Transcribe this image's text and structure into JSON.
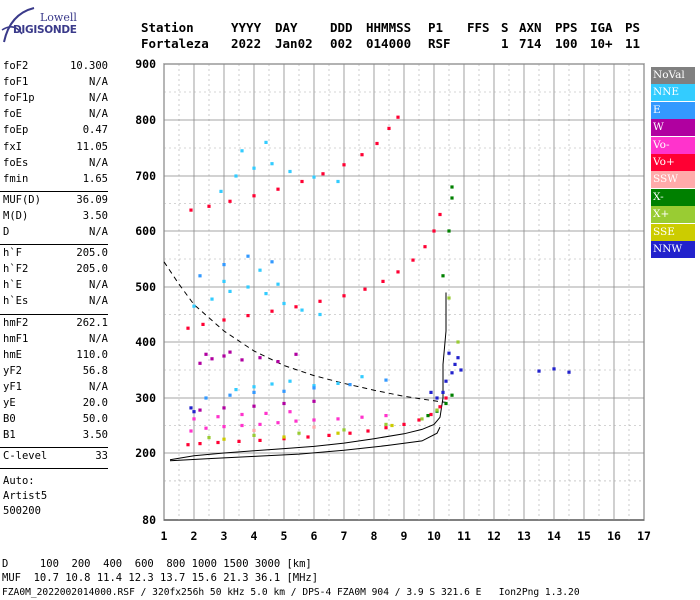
{
  "logo": {
    "line1": "Lowell",
    "line2": "DIGISONDE"
  },
  "header": {
    "labels": [
      "Station",
      "YYYY",
      "DAY",
      "DDD",
      "HHMMSS",
      "P1",
      "FFS",
      "S",
      "AXN",
      "PPS",
      "IGA",
      "PS"
    ],
    "values": [
      "Fortaleza",
      "2022",
      "Jan02",
      "002",
      "014000",
      "RSF",
      "",
      "1",
      "714",
      "100",
      "10+",
      "11"
    ]
  },
  "params": {
    "group1": [
      {
        "k": "foF2",
        "v": "10.300"
      },
      {
        "k": "foF1",
        "v": "N/A"
      },
      {
        "k": "foF1p",
        "v": "N/A"
      },
      {
        "k": "foE",
        "v": "N/A"
      },
      {
        "k": "foEp",
        "v": "0.47"
      },
      {
        "k": "fxI",
        "v": "11.05"
      },
      {
        "k": "foEs",
        "v": "N/A"
      },
      {
        "k": "fmin",
        "v": "1.65"
      }
    ],
    "group2": [
      {
        "k": "MUF(D)",
        "v": "36.09"
      },
      {
        "k": "M(D)",
        "v": "3.50"
      },
      {
        "k": "D",
        "v": "N/A"
      }
    ],
    "group3": [
      {
        "k": "h`F",
        "v": "205.0"
      },
      {
        "k": "h`F2",
        "v": "205.0"
      },
      {
        "k": "h`E",
        "v": "N/A"
      },
      {
        "k": "h`Es",
        "v": "N/A"
      }
    ],
    "group4": [
      {
        "k": "hmF2",
        "v": "262.1"
      },
      {
        "k": "hmF1",
        "v": "N/A"
      },
      {
        "k": "hmE",
        "v": "110.0"
      },
      {
        "k": "yF2",
        "v": "56.8"
      },
      {
        "k": "yF1",
        "v": "N/A"
      },
      {
        "k": "yE",
        "v": "20.0"
      },
      {
        "k": "B0",
        "v": "50.0"
      },
      {
        "k": "B1",
        "v": "3.50"
      }
    ],
    "group5": [
      {
        "k": "C-level",
        "v": "33"
      }
    ],
    "notes": [
      "Auto:",
      "Artist5",
      "500200"
    ]
  },
  "legend": [
    {
      "label": "NoVal",
      "color": "#808080"
    },
    {
      "label": "NNE",
      "color": "#33ccff"
    },
    {
      "label": "E",
      "color": "#3399ff"
    },
    {
      "label": "W",
      "color": "#b000a0"
    },
    {
      "label": "Vo-",
      "color": "#ff33cc"
    },
    {
      "label": "Vo+",
      "color": "#ff0033"
    },
    {
      "label": "SSW",
      "color": "#ffaaaa"
    },
    {
      "label": "X-",
      "color": "#008000"
    },
    {
      "label": "X+",
      "color": "#99cc33"
    },
    {
      "label": "SSE",
      "color": "#cccc00"
    },
    {
      "label": "NNW",
      "color": "#2222cc"
    }
  ],
  "footer": {
    "line1": "D     100  200  400  600  800 1000 1500 3000 [km]",
    "line2": "MUF  10.7 10.8 11.4 12.3 13.7 15.6 21.3 36.1 [MHz]",
    "line3": "FZA0M_2022002014000.RSF / 320fx256h 50 kHz 5.0 km / DPS-4 FZA0M 904 / 3.9 S 321.6 E   Ion2Png 1.3.20"
  },
  "chart_data": {
    "type": "scatter",
    "xlim": [
      1,
      17
    ],
    "ylim": [
      80,
      900
    ],
    "x_ticks": [
      1,
      2,
      3,
      4,
      5,
      6,
      7,
      8,
      9,
      10,
      11,
      12,
      13,
      14,
      15,
      16,
      17
    ],
    "y_ticks": [
      80,
      200,
      300,
      400,
      500,
      600,
      700,
      800,
      900
    ],
    "grid": true,
    "legend_position": "right",
    "series": [
      {
        "name": "Vo+",
        "color": "#ff0033",
        "points": [
          [
            1.8,
            215
          ],
          [
            2.2,
            217
          ],
          [
            2.8,
            219
          ],
          [
            3.5,
            221
          ],
          [
            4.2,
            223
          ],
          [
            5.0,
            226
          ],
          [
            5.8,
            229
          ],
          [
            6.5,
            232
          ],
          [
            7.2,
            236
          ],
          [
            7.8,
            240
          ],
          [
            8.4,
            246
          ],
          [
            9.0,
            252
          ],
          [
            9.5,
            260
          ],
          [
            9.9,
            270
          ],
          [
            10.2,
            284
          ],
          [
            10.4,
            300
          ],
          [
            1.8,
            425
          ],
          [
            2.3,
            432
          ],
          [
            3.0,
            440
          ],
          [
            3.8,
            448
          ],
          [
            4.6,
            456
          ],
          [
            5.4,
            464
          ],
          [
            6.2,
            474
          ],
          [
            7.0,
            484
          ],
          [
            7.7,
            496
          ],
          [
            8.3,
            510
          ],
          [
            8.8,
            527
          ],
          [
            9.3,
            548
          ],
          [
            9.7,
            572
          ],
          [
            10.0,
            600
          ],
          [
            10.2,
            630
          ],
          [
            1.9,
            638
          ],
          [
            2.5,
            645
          ],
          [
            3.2,
            654
          ],
          [
            4.0,
            664
          ],
          [
            4.8,
            676
          ],
          [
            5.6,
            690
          ],
          [
            6.3,
            704
          ],
          [
            7.0,
            720
          ],
          [
            7.6,
            738
          ],
          [
            8.1,
            758
          ],
          [
            8.5,
            785
          ],
          [
            8.8,
            805
          ]
        ]
      },
      {
        "name": "Vo-",
        "color": "#ff33cc",
        "points": [
          [
            1.9,
            240
          ],
          [
            2.4,
            245
          ],
          [
            3.0,
            248
          ],
          [
            3.6,
            250
          ],
          [
            4.2,
            252
          ],
          [
            4.8,
            255
          ],
          [
            5.4,
            258
          ],
          [
            6.0,
            260
          ],
          [
            6.8,
            262
          ],
          [
            7.6,
            265
          ],
          [
            8.4,
            268
          ],
          [
            2.0,
            262
          ],
          [
            2.8,
            266
          ],
          [
            3.6,
            270
          ],
          [
            4.4,
            272
          ],
          [
            5.2,
            275
          ]
        ]
      },
      {
        "name": "W",
        "color": "#b000a0",
        "points": [
          [
            2.2,
            362
          ],
          [
            2.6,
            370
          ],
          [
            3.0,
            375
          ],
          [
            3.6,
            368
          ],
          [
            4.2,
            372
          ],
          [
            4.8,
            365
          ],
          [
            5.4,
            378
          ],
          [
            2.4,
            378
          ],
          [
            3.2,
            382
          ],
          [
            2.2,
            278
          ],
          [
            3.0,
            282
          ],
          [
            4.0,
            285
          ],
          [
            5.0,
            290
          ],
          [
            6.0,
            294
          ]
        ]
      },
      {
        "name": "NNE",
        "color": "#33ccff",
        "points": [
          [
            2.0,
            465
          ],
          [
            2.6,
            478
          ],
          [
            3.2,
            492
          ],
          [
            3.8,
            500
          ],
          [
            4.4,
            488
          ],
          [
            5.0,
            470
          ],
          [
            5.6,
            458
          ],
          [
            6.2,
            450
          ],
          [
            3.0,
            510
          ],
          [
            4.2,
            530
          ],
          [
            4.8,
            505
          ],
          [
            3.4,
            315
          ],
          [
            4.0,
            320
          ],
          [
            4.6,
            325
          ],
          [
            5.2,
            330
          ],
          [
            6.0,
            322
          ],
          [
            6.8,
            326
          ],
          [
            7.6,
            338
          ],
          [
            2.9,
            672
          ],
          [
            3.4,
            700
          ],
          [
            4.0,
            714
          ],
          [
            4.6,
            722
          ],
          [
            5.2,
            708
          ],
          [
            6.0,
            698
          ],
          [
            6.8,
            690
          ],
          [
            3.6,
            745
          ],
          [
            4.4,
            760
          ]
        ]
      },
      {
        "name": "E",
        "color": "#3399ff",
        "points": [
          [
            2.4,
            300
          ],
          [
            3.2,
            305
          ],
          [
            4.0,
            310
          ],
          [
            5.0,
            312
          ],
          [
            6.0,
            318
          ],
          [
            7.2,
            324
          ],
          [
            8.4,
            332
          ],
          [
            2.2,
            520
          ],
          [
            3.0,
            540
          ],
          [
            3.8,
            555
          ],
          [
            4.6,
            545
          ]
        ]
      },
      {
        "name": "NNW",
        "color": "#2222cc",
        "points": [
          [
            10.4,
            330
          ],
          [
            10.6,
            345
          ],
          [
            10.7,
            360
          ],
          [
            10.8,
            372
          ],
          [
            10.5,
            380
          ],
          [
            10.3,
            310
          ],
          [
            10.9,
            350
          ],
          [
            13.5,
            348
          ],
          [
            14.0,
            352
          ],
          [
            14.5,
            346
          ],
          [
            9.9,
            310
          ],
          [
            10.1,
            300
          ],
          [
            1.9,
            282
          ],
          [
            2.0,
            275
          ]
        ]
      },
      {
        "name": "X-",
        "color": "#008000",
        "points": [
          [
            9.8,
            268
          ],
          [
            10.1,
            276
          ],
          [
            10.4,
            290
          ],
          [
            10.6,
            305
          ],
          [
            10.3,
            520
          ],
          [
            10.5,
            600
          ],
          [
            10.6,
            660
          ],
          [
            10.6,
            680
          ]
        ]
      },
      {
        "name": "X+",
        "color": "#99cc33",
        "points": [
          [
            2.5,
            228
          ],
          [
            4.0,
            232
          ],
          [
            5.5,
            236
          ],
          [
            7.0,
            242
          ],
          [
            8.4,
            252
          ],
          [
            9.6,
            262
          ],
          [
            10.1,
            278
          ],
          [
            10.8,
            400
          ],
          [
            10.5,
            480
          ]
        ]
      },
      {
        "name": "SSE",
        "color": "#cccc00",
        "points": [
          [
            3.0,
            225
          ],
          [
            5.0,
            229
          ],
          [
            6.8,
            236
          ],
          [
            8.6,
            250
          ]
        ]
      },
      {
        "name": "SSW",
        "color": "#ffaaaa",
        "points": [
          [
            4.0,
            241
          ],
          [
            6.0,
            247
          ]
        ]
      }
    ],
    "curves": [
      {
        "name": "",
        "style": "solid",
        "points": [
          [
            1.2,
            188
          ],
          [
            2.0,
            195
          ],
          [
            3.0,
            200
          ],
          [
            4.0,
            204
          ],
          [
            5.0,
            208
          ],
          [
            6.0,
            212
          ],
          [
            7.0,
            218
          ],
          [
            8.0,
            226
          ],
          [
            9.0,
            235
          ],
          [
            9.6,
            243
          ],
          [
            10.0,
            252
          ],
          [
            10.2,
            265
          ],
          [
            10.3,
            300
          ],
          [
            10.3,
            360
          ],
          [
            10.4,
            420
          ],
          [
            10.4,
            490
          ]
        ]
      },
      {
        "name": "",
        "style": "solid",
        "points": [
          [
            1.2,
            186
          ],
          [
            2.5,
            190
          ],
          [
            4.0,
            194
          ],
          [
            5.5,
            198
          ],
          [
            7.0,
            205
          ],
          [
            8.5,
            214
          ],
          [
            9.6,
            222
          ],
          [
            10.1,
            236
          ],
          [
            10.2,
            247
          ]
        ]
      },
      {
        "name": "",
        "style": "dashed",
        "points": [
          [
            1.0,
            545
          ],
          [
            1.5,
            505
          ],
          [
            2.0,
            468
          ],
          [
            3.0,
            420
          ],
          [
            4.0,
            384
          ],
          [
            5.0,
            358
          ],
          [
            6.0,
            340
          ],
          [
            7.0,
            326
          ],
          [
            8.0,
            314
          ],
          [
            9.0,
            303
          ],
          [
            10.0,
            295
          ],
          [
            10.4,
            292
          ]
        ]
      }
    ]
  }
}
